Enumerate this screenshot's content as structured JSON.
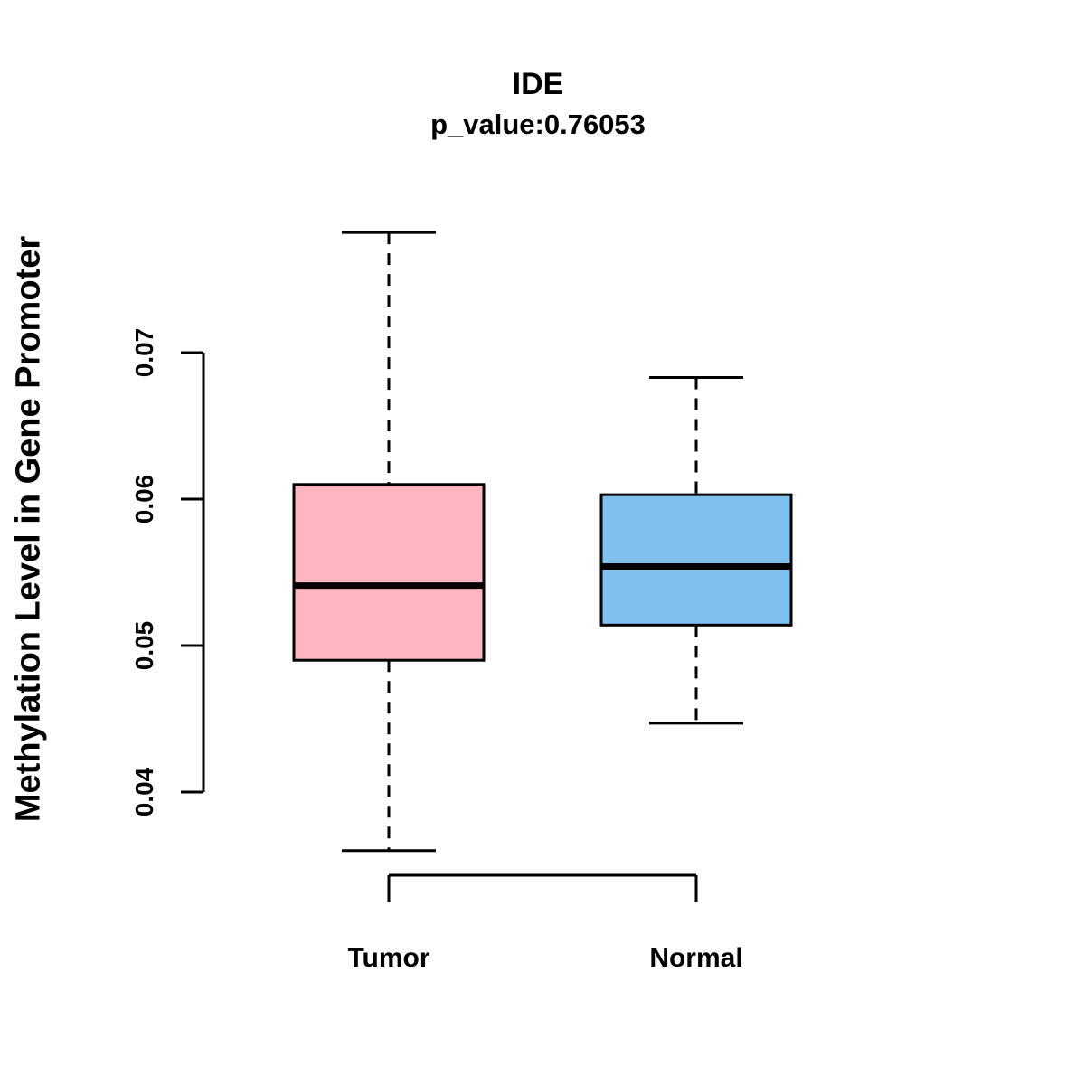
{
  "title": "IDE",
  "subtitle": "p_value:0.76053",
  "ylabel": "Methylation Level in Gene Promoter",
  "chart_data": {
    "type": "boxplot",
    "title": "IDE",
    "subtitle": "p_value:0.76053",
    "xlabel": "",
    "ylabel": "Methylation Level in Gene Promoter",
    "categories": [
      "Tumor",
      "Normal"
    ],
    "ytick_values": [
      0.04,
      0.05,
      0.06,
      0.07
    ],
    "ytick_labels": [
      "0.04",
      "0.05",
      "0.06",
      "0.07"
    ],
    "axis_range": [
      0.04,
      0.07
    ],
    "grid": false,
    "legend": false,
    "series": [
      {
        "name": "Tumor",
        "box_color": "#FFB6C1",
        "lower_whisker": 0.036,
        "q1": 0.049,
        "median": 0.0541,
        "q3": 0.061,
        "upper_whisker": 0.0782
      },
      {
        "name": "Normal",
        "box_color": "#7EC0EE",
        "lower_whisker": 0.0447,
        "q1": 0.0514,
        "median": 0.0554,
        "q3": 0.0603,
        "upper_whisker": 0.0683
      }
    ],
    "line_color": "#000000"
  }
}
